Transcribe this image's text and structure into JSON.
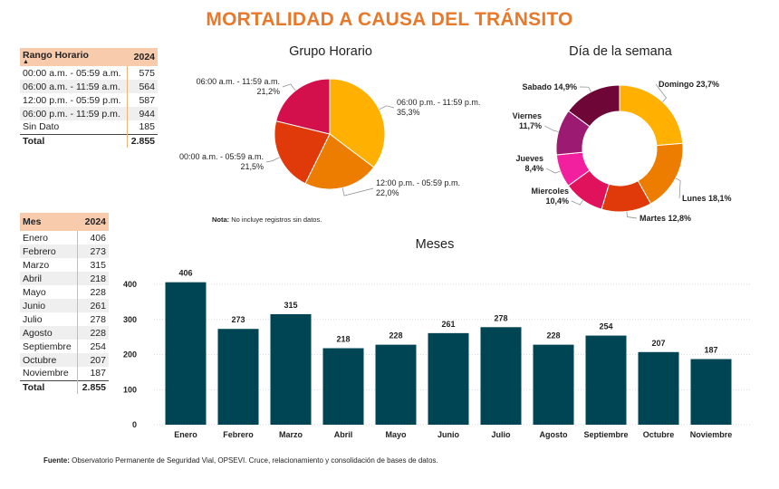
{
  "title": "MORTALIDAD A CAUSA DEL TRÁNSITO",
  "table_horario": {
    "header": [
      "Rango Horario",
      "2024"
    ],
    "rows": [
      [
        "00:00 a.m. - 05:59 a.m.",
        "575"
      ],
      [
        "06:00 a.m. - 11:59 a.m.",
        "564"
      ],
      [
        "12:00 p.m. - 05:59 p.m.",
        "587"
      ],
      [
        "06:00 p.m. - 11:59 p.m.",
        "944"
      ],
      [
        "Sin Dato",
        "185"
      ]
    ],
    "total": [
      "Total",
      "2.855"
    ]
  },
  "table_meses": {
    "header": [
      "Mes",
      "2024"
    ],
    "rows": [
      [
        "Enero",
        "406"
      ],
      [
        "Febrero",
        "273"
      ],
      [
        "Marzo",
        "315"
      ],
      [
        "Abril",
        "218"
      ],
      [
        "Mayo",
        "228"
      ],
      [
        "Junio",
        "261"
      ],
      [
        "Julio",
        "278"
      ],
      [
        "Agosto",
        "228"
      ],
      [
        "Septiembre",
        "254"
      ],
      [
        "Octubre",
        "207"
      ],
      [
        "Noviembre",
        "187"
      ]
    ],
    "total": [
      "Total",
      "2.855"
    ]
  },
  "note": {
    "bold": "Nota:",
    "text": " No incluye registros sin datos."
  },
  "source": {
    "bold": "Fuente:",
    "text": " Observatorio Permanente de Seguridad Vial, OPSEVI. Cruce, relacionamiento y consolidación de bases de datos."
  },
  "chart_data": [
    {
      "type": "pie",
      "title": "Grupo Horario",
      "slices": [
        {
          "label": "06:00 p.m. - 11:59 p.m.",
          "pct_label": "35,3%",
          "value": 35.3,
          "color": "#FFB000"
        },
        {
          "label": "12:00 p.m. - 05:59 p.m.",
          "pct_label": "22,0%",
          "value": 22.0,
          "color": "#ED7D00"
        },
        {
          "label": "00:00 a.m. - 05:59 a.m.",
          "pct_label": "21,5%",
          "value": 21.5,
          "color": "#E03A0A"
        },
        {
          "label": "06:00 a.m. - 11:59 a.m.",
          "pct_label": "21,2%",
          "value": 21.2,
          "color": "#D3104C"
        }
      ]
    },
    {
      "type": "pie",
      "subtype": "donut",
      "title": "Día de la semana",
      "slices": [
        {
          "label": "Domingo",
          "pct_label": "23,7%",
          "value": 23.7,
          "color": "#FFB000"
        },
        {
          "label": "Lunes",
          "pct_label": "18,1%",
          "value": 18.1,
          "color": "#ED7D00"
        },
        {
          "label": "Martes",
          "pct_label": "12,8%",
          "value": 12.8,
          "color": "#E03A0A"
        },
        {
          "label": "Miercoles",
          "pct_label": "10,4%",
          "value": 10.4,
          "color": "#E0125C"
        },
        {
          "label": "Jueves",
          "pct_label": "8,4%",
          "value": 8.4,
          "color": "#F21F9E"
        },
        {
          "label": "Viernes",
          "pct_label": "11,7%",
          "value": 11.7,
          "color": "#9C1A72"
        },
        {
          "label": "Sabado",
          "pct_label": "14,9%",
          "value": 14.9,
          "color": "#6E0638"
        }
      ]
    },
    {
      "type": "bar",
      "title": "Meses",
      "categories": [
        "Enero",
        "Febrero",
        "Marzo",
        "Abril",
        "Mayo",
        "Junio",
        "Julio",
        "Agosto",
        "Septiembre",
        "Octubre",
        "Noviembre"
      ],
      "values": [
        406,
        273,
        315,
        218,
        228,
        261,
        278,
        228,
        254,
        207,
        187
      ],
      "yticks": [
        0,
        100,
        200,
        300,
        400
      ],
      "ylim": [
        0,
        420
      ],
      "grid": true,
      "color": "#004554"
    }
  ]
}
